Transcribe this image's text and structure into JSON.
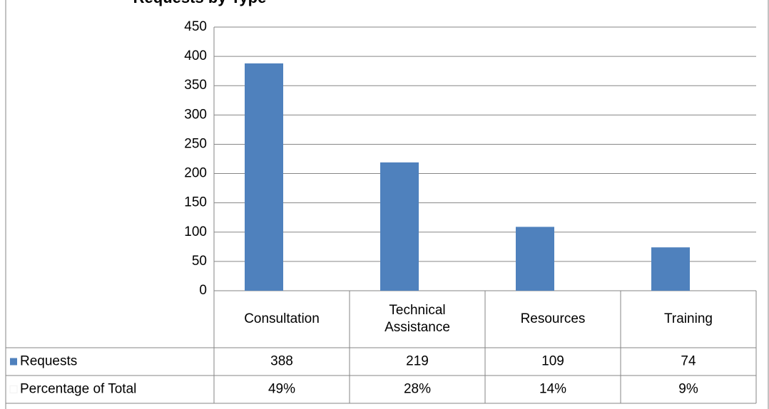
{
  "chart_data": {
    "type": "bar",
    "title": "Requests by Type",
    "categories": [
      "Consultation",
      "Technical Assistance",
      "Resources",
      "Training"
    ],
    "series": [
      {
        "name": "Requests",
        "color": "#4f81bd",
        "values": [
          388,
          219,
          109,
          74
        ]
      },
      {
        "name": "Percentage of Total",
        "color": "#ffffff",
        "values": [
          49,
          28,
          14,
          9
        ],
        "value_labels": [
          "49%",
          "28%",
          "14%",
          "9%"
        ]
      }
    ],
    "ylim": [
      0,
      450
    ],
    "yticks": [
      0,
      50,
      100,
      150,
      200,
      250,
      300,
      350,
      400,
      450
    ],
    "grid": true
  }
}
